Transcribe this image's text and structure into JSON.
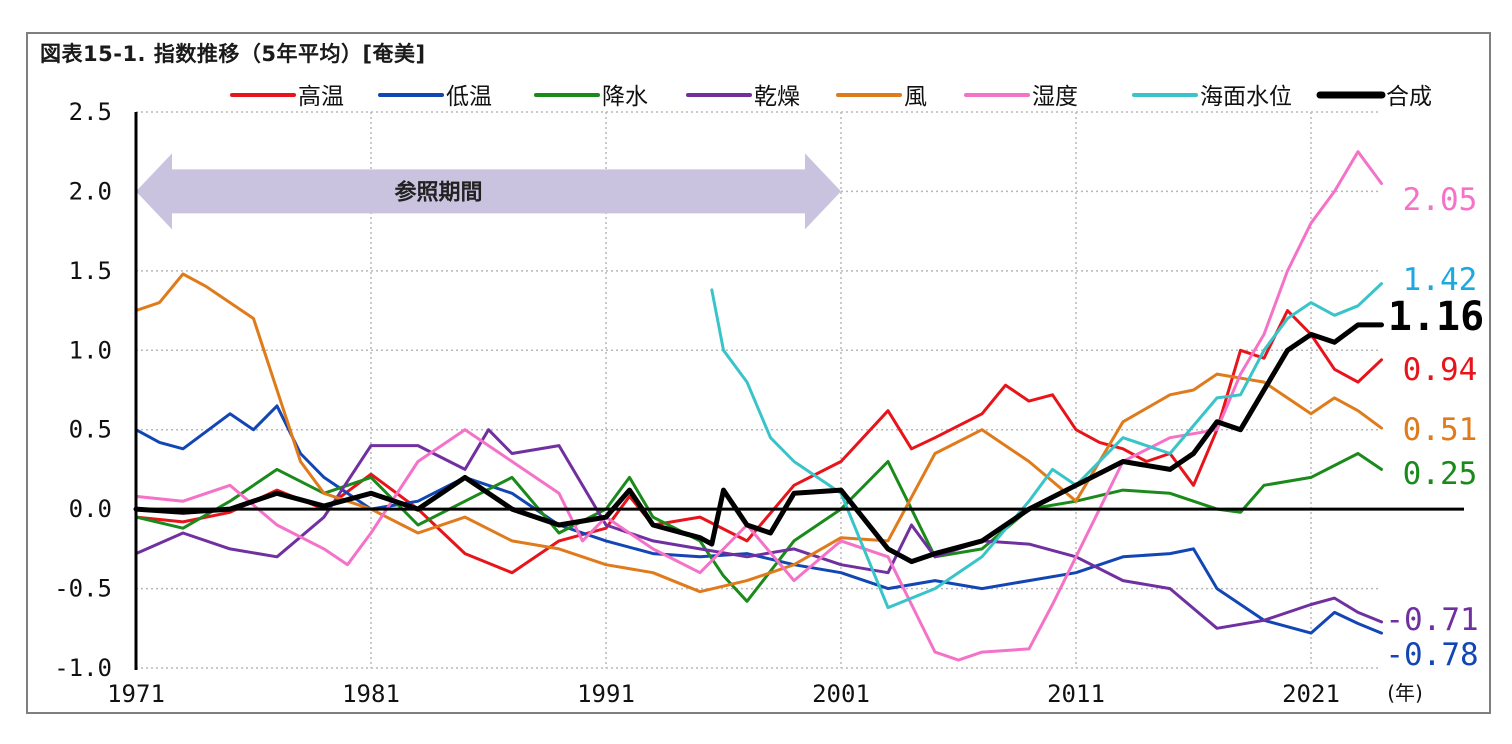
{
  "title": "図表15-1. 指数推移（5年平均）[奄美]",
  "chart_data": {
    "type": "line",
    "x_ticks": [
      "1971",
      "1981",
      "1991",
      "2001",
      "2011",
      "2021"
    ],
    "x_unit_label": "(年)",
    "y_ticks": [
      "2.5",
      "2.0",
      "1.5",
      "1.0",
      "0.5",
      "0.0",
      "-0.5",
      "-1.0"
    ],
    "ylim": [
      -1.0,
      2.5
    ],
    "xlim": [
      1971,
      2024.5
    ],
    "grid": true,
    "legend_position": "top",
    "reference_period": {
      "label": "参照期間",
      "start": 1971,
      "end": 2001,
      "color": "#c9c3df"
    },
    "series": [
      {
        "name": "高温",
        "color": "#e8141b",
        "end_label": "0.94",
        "x": [
          1971,
          1973,
          1975,
          1977,
          1979,
          1981,
          1983,
          1985,
          1987,
          1989,
          1991,
          1992,
          1993,
          1995,
          1997,
          1999,
          2001,
          2003,
          2004,
          2005,
          2007,
          2008,
          2009,
          2010,
          2011,
          2012,
          2013,
          2014,
          2015,
          2016,
          2017,
          2018,
          2019,
          2020,
          2021,
          2022,
          2023,
          2024
        ],
        "y": [
          -0.05,
          -0.08,
          -0.02,
          0.12,
          0.0,
          0.22,
          0.0,
          -0.28,
          -0.4,
          -0.2,
          -0.12,
          0.08,
          -0.1,
          -0.05,
          -0.2,
          0.15,
          0.3,
          0.62,
          0.38,
          0.45,
          0.6,
          0.78,
          0.68,
          0.72,
          0.5,
          0.42,
          0.38,
          0.3,
          0.35,
          0.15,
          0.5,
          1.0,
          0.95,
          1.25,
          1.1,
          0.88,
          0.8,
          0.94
        ]
      },
      {
        "name": "低温",
        "color": "#1246b4",
        "end_label": "-0.78",
        "x": [
          1971,
          1972,
          1973,
          1975,
          1976,
          1977,
          1978,
          1979,
          1981,
          1983,
          1985,
          1987,
          1989,
          1991,
          1993,
          1995,
          1997,
          1999,
          2001,
          2003,
          2005,
          2007,
          2009,
          2011,
          2013,
          2015,
          2016,
          2017,
          2019,
          2021,
          2022,
          2023,
          2024
        ],
        "y": [
          0.5,
          0.42,
          0.38,
          0.6,
          0.5,
          0.65,
          0.35,
          0.2,
          0.0,
          0.05,
          0.2,
          0.1,
          -0.1,
          -0.2,
          -0.28,
          -0.3,
          -0.28,
          -0.35,
          -0.4,
          -0.5,
          -0.45,
          -0.5,
          -0.45,
          -0.4,
          -0.3,
          -0.28,
          -0.25,
          -0.5,
          -0.7,
          -0.78,
          -0.65,
          -0.72,
          -0.78
        ]
      },
      {
        "name": "降水",
        "color": "#1a8a1a",
        "end_label": "0.25",
        "x": [
          1971,
          1973,
          1975,
          1977,
          1979,
          1981,
          1983,
          1985,
          1987,
          1989,
          1991,
          1992,
          1993,
          1995,
          1996,
          1997,
          1999,
          2001,
          2003,
          2005,
          2007,
          2009,
          2011,
          2013,
          2015,
          2017,
          2018,
          2019,
          2021,
          2023,
          2024
        ],
        "y": [
          -0.05,
          -0.12,
          0.05,
          0.25,
          0.1,
          0.2,
          -0.1,
          0.05,
          0.2,
          -0.15,
          0.0,
          0.2,
          -0.05,
          -0.2,
          -0.42,
          -0.58,
          -0.2,
          0.0,
          0.3,
          -0.3,
          -0.25,
          0.0,
          0.05,
          0.12,
          0.1,
          0.0,
          -0.02,
          0.15,
          0.2,
          0.35,
          0.25
        ]
      },
      {
        "name": "乾燥",
        "color": "#7030a0",
        "end_label": "-0.71",
        "x": [
          1971,
          1973,
          1975,
          1977,
          1979,
          1981,
          1983,
          1985,
          1986,
          1987,
          1989,
          1991,
          1993,
          1995,
          1997,
          1999,
          2001,
          2003,
          2004,
          2005,
          2007,
          2009,
          2011,
          2013,
          2015,
          2017,
          2019,
          2021,
          2022,
          2023,
          2024
        ],
        "y": [
          -0.28,
          -0.15,
          -0.25,
          -0.3,
          -0.05,
          0.4,
          0.4,
          0.25,
          0.5,
          0.35,
          0.4,
          -0.1,
          -0.2,
          -0.25,
          -0.3,
          -0.25,
          -0.35,
          -0.4,
          -0.1,
          -0.3,
          -0.2,
          -0.22,
          -0.3,
          -0.45,
          -0.5,
          -0.75,
          -0.7,
          -0.6,
          -0.56,
          -0.65,
          -0.71
        ]
      },
      {
        "name": "風",
        "color": "#e07b1c",
        "end_label": "0.51",
        "x": [
          1971,
          1972,
          1973,
          1974,
          1975,
          1976,
          1977,
          1978,
          1979,
          1981,
          1983,
          1985,
          1987,
          1989,
          1991,
          1993,
          1995,
          1997,
          1999,
          2001,
          2003,
          2005,
          2007,
          2009,
          2011,
          2013,
          2015,
          2016,
          2017,
          2019,
          2021,
          2022,
          2023,
          2024
        ],
        "y": [
          1.25,
          1.3,
          1.48,
          1.4,
          1.3,
          1.2,
          0.75,
          0.3,
          0.1,
          0.0,
          -0.15,
          -0.05,
          -0.2,
          -0.25,
          -0.35,
          -0.4,
          -0.52,
          -0.45,
          -0.35,
          -0.18,
          -0.2,
          0.35,
          0.5,
          0.3,
          0.05,
          0.55,
          0.72,
          0.75,
          0.85,
          0.8,
          0.6,
          0.7,
          0.62,
          0.51
        ]
      },
      {
        "name": "湿度",
        "color": "#f472c8",
        "end_label": "2.05",
        "x": [
          1971,
          1973,
          1975,
          1977,
          1979,
          1980,
          1981,
          1983,
          1985,
          1987,
          1989,
          1990,
          1991,
          1993,
          1995,
          1997,
          1999,
          2001,
          2003,
          2005,
          2006,
          2007,
          2009,
          2010,
          2011,
          2013,
          2015,
          2017,
          2018,
          2019,
          2020,
          2021,
          2022,
          2023,
          2024
        ],
        "y": [
          0.08,
          0.05,
          0.15,
          -0.1,
          -0.25,
          -0.35,
          -0.15,
          0.3,
          0.5,
          0.3,
          0.1,
          -0.2,
          -0.05,
          -0.25,
          -0.4,
          -0.1,
          -0.45,
          -0.2,
          -0.3,
          -0.9,
          -0.95,
          -0.9,
          -0.88,
          -0.6,
          -0.3,
          0.3,
          0.45,
          0.5,
          0.85,
          1.1,
          1.5,
          1.8,
          2.0,
          2.25,
          2.05
        ]
      },
      {
        "name": "海面水位",
        "color": "#38c4c8",
        "end_label": "1.42",
        "x": [
          1995.5,
          1996,
          1997,
          1998,
          1999,
          2001,
          2003,
          2005,
          2007,
          2009,
          2010,
          2011,
          2013,
          2015,
          2017,
          2018,
          2019,
          2020,
          2021,
          2022,
          2023,
          2024
        ],
        "y": [
          1.38,
          1.0,
          0.8,
          0.45,
          0.3,
          0.1,
          -0.62,
          -0.5,
          -0.3,
          0.05,
          0.25,
          0.15,
          0.45,
          0.35,
          0.7,
          0.72,
          1.0,
          1.2,
          1.3,
          1.22,
          1.28,
          1.42
        ]
      },
      {
        "name": "合成",
        "color": "#000000",
        "end_label": "1.16",
        "x": [
          1971,
          1973,
          1975,
          1977,
          1979,
          1981,
          1983,
          1985,
          1987,
          1989,
          1991,
          1992,
          1993,
          1995,
          1995.5,
          1996,
          1997,
          1998,
          1999,
          2001,
          2003,
          2004,
          2005,
          2007,
          2009,
          2011,
          2013,
          2015,
          2016,
          2017,
          2018,
          2019,
          2020,
          2021,
          2022,
          2023,
          2024
        ],
        "y": [
          0.0,
          -0.02,
          0.0,
          0.1,
          0.02,
          0.1,
          0.0,
          0.2,
          0.0,
          -0.1,
          -0.05,
          0.12,
          -0.1,
          -0.18,
          -0.22,
          0.12,
          -0.1,
          -0.15,
          0.1,
          0.12,
          -0.25,
          -0.33,
          -0.28,
          -0.2,
          0.0,
          0.15,
          0.3,
          0.25,
          0.35,
          0.55,
          0.5,
          0.75,
          1.0,
          1.1,
          1.05,
          1.16,
          1.16
        ]
      }
    ]
  }
}
